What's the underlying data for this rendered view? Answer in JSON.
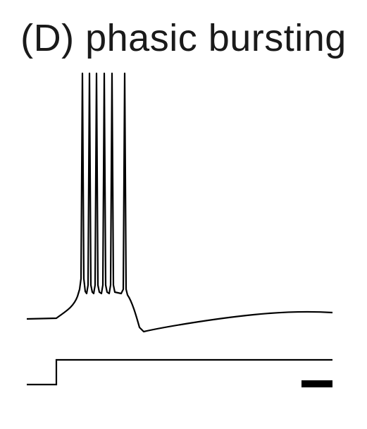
{
  "title": "(D) phasic bursting",
  "trace_color": "#000000",
  "background_color": "#ffffff"
}
